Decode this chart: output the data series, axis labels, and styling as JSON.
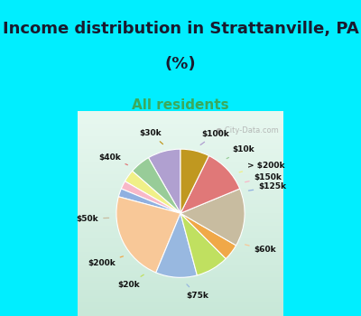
{
  "title_line1": "Income distribution in Strattanville, PA",
  "title_line2": "(%)",
  "subtitle": "All residents",
  "title_fontsize": 13,
  "subtitle_fontsize": 11,
  "title_color": "#1a1a2e",
  "subtitle_color": "#3aaa5c",
  "bg_color": "#00eeff",
  "chart_bg_top": "#d8f0e8",
  "chart_bg_bottom": "#b8e8d8",
  "watermark": "City-Data.com",
  "labels": [
    "$100k",
    "$10k",
    "> $200k",
    "$150k",
    "$125k",
    "$60k",
    "$75k",
    "$20k",
    "$200k",
    "$50k",
    "$40k",
    "$30k"
  ],
  "values": [
    8,
    5,
    3,
    2,
    2,
    22,
    10,
    8,
    4,
    14,
    11,
    7
  ],
  "colors": [
    "#b0a0d0",
    "#98cc98",
    "#f0f088",
    "#f8b8c8",
    "#90b0e0",
    "#f8c898",
    "#98b8e0",
    "#c0e060",
    "#f0a848",
    "#c8bca0",
    "#e07878",
    "#c09820"
  ],
  "figsize": [
    4.0,
    3.5
  ],
  "dpi": 100
}
